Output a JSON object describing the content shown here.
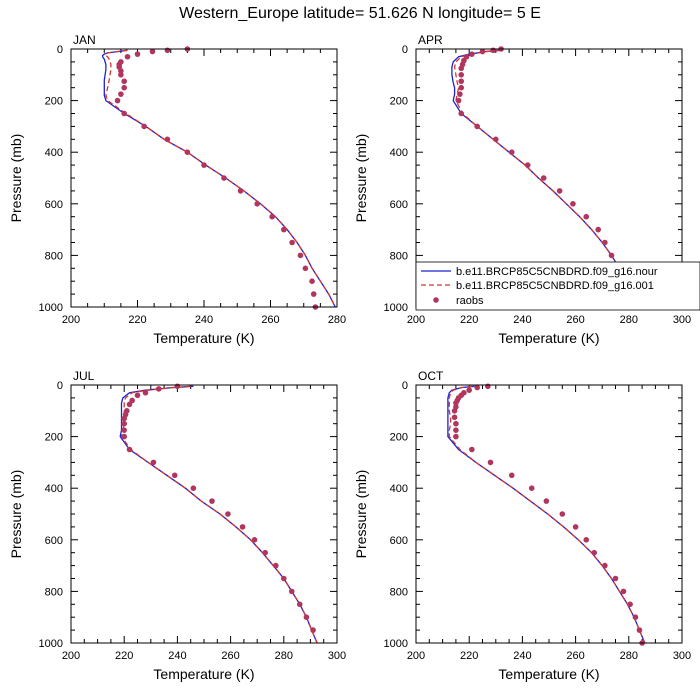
{
  "figure": {
    "title": "Western_Europe  latitude= 51.626 N longitude= 5 E"
  },
  "legend": {
    "entries": [
      {
        "label": "b.e11.BRCP85C5CNBDRD.f09_g16.nour",
        "color": "#1e22d0",
        "style": "solid"
      },
      {
        "label": "b.e11.BRCP85C5CNBDRD.f09_g16.001",
        "color": "#d8342f",
        "style": "dashed"
      },
      {
        "label": "raobs",
        "color": "#b0365e",
        "style": "marker"
      }
    ]
  },
  "chart_data": [
    {
      "type": "line",
      "title": "JAN",
      "xlabel": "Temperature (K)",
      "ylabel": "Pressure (mb)",
      "xlim": [
        200,
        280
      ],
      "ylim": [
        1000,
        0
      ],
      "xticks": [
        200,
        220,
        240,
        260,
        280
      ],
      "yticks": [
        0,
        200,
        400,
        600,
        800,
        1000
      ],
      "series": [
        {
          "key": "nour",
          "y": [
            5,
            10,
            15,
            20,
            25,
            30,
            40,
            60,
            80,
            120,
            150,
            180,
            200,
            250,
            300,
            350,
            400,
            450,
            500,
            550,
            600,
            650,
            700,
            750,
            800,
            850,
            900,
            950,
            1000
          ],
          "x": [
            217,
            214,
            211,
            210,
            209.5,
            209.5,
            210,
            210.5,
            210.5,
            210,
            210,
            210,
            210.5,
            216,
            222.5,
            228,
            235,
            240.5,
            246.5,
            252,
            257,
            261.5,
            265,
            268,
            270.5,
            272.5,
            275,
            277.5,
            279.5
          ]
        },
        {
          "key": "001",
          "y": [
            5,
            10,
            15,
            20,
            25,
            30,
            40,
            60,
            80,
            120,
            150,
            180,
            200,
            250,
            300,
            350,
            400,
            450,
            500,
            550,
            600,
            650,
            700,
            750,
            800,
            850,
            900,
            950,
            1000
          ],
          "x": [
            217,
            214,
            211,
            210.5,
            210.5,
            211,
            211.5,
            212,
            212,
            211.5,
            211,
            210.5,
            211,
            216.5,
            222.5,
            228,
            235,
            240.5,
            246.5,
            252,
            257,
            261.5,
            265,
            268,
            270.5,
            272.5,
            275,
            277.5,
            279.5
          ]
        },
        {
          "key": "raobs",
          "marker": true,
          "y": [
            0,
            5,
            10,
            20,
            30,
            50,
            60,
            70,
            85,
            100,
            125,
            150,
            175,
            200,
            250,
            300,
            350,
            400,
            450,
            500,
            550,
            600,
            650,
            700,
            750,
            800,
            850,
            900,
            950,
            1000
          ],
          "x": [
            235,
            229,
            224.5,
            220,
            217,
            215,
            214.5,
            214.5,
            215,
            215,
            216,
            216,
            215,
            214,
            216,
            222,
            229,
            235,
            240,
            246,
            251,
            256,
            260.5,
            264,
            266.5,
            269,
            270.5,
            272.5,
            273,
            273.5
          ]
        }
      ]
    },
    {
      "type": "line",
      "title": "APR",
      "xlabel": "Temperature (K)",
      "ylabel": "Pressure (mb)",
      "xlim": [
        200,
        300
      ],
      "ylim": [
        1000,
        0
      ],
      "xticks": [
        200,
        220,
        240,
        260,
        280,
        300
      ],
      "yticks": [
        0,
        200,
        400,
        600,
        800,
        1000
      ],
      "series": [
        {
          "key": "nour",
          "y": [
            5,
            10,
            20,
            30,
            50,
            70,
            100,
            130,
            150,
            175,
            200,
            250,
            300,
            350,
            400,
            450,
            500,
            550,
            600,
            650,
            700,
            750,
            800,
            850,
            900,
            950,
            1000
          ],
          "x": [
            232,
            226,
            220,
            216,
            214,
            213.5,
            213.5,
            214,
            214.5,
            214.5,
            214,
            217,
            223,
            229,
            235,
            241,
            246,
            251.5,
            256.5,
            261.5,
            266,
            270,
            273.5,
            276.5,
            279.5,
            282,
            285
          ]
        },
        {
          "key": "001",
          "y": [
            5,
            10,
            20,
            30,
            50,
            70,
            100,
            130,
            150,
            175,
            200,
            250,
            300,
            350,
            400,
            450,
            500,
            550,
            600,
            650,
            700,
            750,
            800,
            850,
            900,
            950,
            1000
          ],
          "x": [
            231,
            226,
            221,
            217,
            215,
            214.5,
            215,
            215.5,
            216,
            215.5,
            215,
            217.5,
            223,
            229,
            235,
            241,
            246,
            251.5,
            256.5,
            261.5,
            266,
            270,
            273.5,
            276.5,
            279.5,
            282,
            285
          ]
        },
        {
          "key": "raobs",
          "marker": true,
          "y": [
            0,
            5,
            10,
            20,
            30,
            45,
            60,
            75,
            100,
            125,
            150,
            175,
            200,
            250,
            300,
            350,
            400,
            450,
            500,
            550,
            600,
            650,
            700,
            750,
            800,
            850,
            900,
            950
          ],
          "x": [
            232,
            229,
            225,
            221,
            219,
            218,
            217.5,
            217,
            217,
            217,
            217,
            216.5,
            216,
            217,
            223,
            230,
            236,
            242,
            248,
            254,
            259,
            264,
            268.5,
            271,
            273.5,
            276,
            279,
            280.5
          ]
        }
      ]
    },
    {
      "type": "line",
      "title": "JUL",
      "xlabel": "Temperature (K)",
      "ylabel": "Pressure (mb)",
      "xlim": [
        200,
        300
      ],
      "ylim": [
        1000,
        0
      ],
      "xticks": [
        200,
        220,
        240,
        260,
        280,
        300
      ],
      "yticks": [
        0,
        200,
        400,
        600,
        800,
        1000
      ],
      "series": [
        {
          "key": "nour",
          "y": [
            5,
            10,
            20,
            30,
            50,
            70,
            100,
            130,
            150,
            175,
            200,
            250,
            300,
            350,
            400,
            450,
            500,
            550,
            600,
            650,
            700,
            750,
            800,
            850,
            900,
            950,
            1000
          ],
          "x": [
            246,
            238,
            228,
            222,
            219.5,
            219,
            219,
            219,
            219,
            219,
            218.5,
            222,
            229,
            236,
            243,
            249,
            256,
            262,
            267.5,
            272,
            276,
            280,
            283,
            286,
            288.5,
            290.5,
            292.5
          ]
        },
        {
          "key": "001",
          "y": [
            5,
            10,
            20,
            30,
            50,
            70,
            100,
            130,
            150,
            175,
            200,
            250,
            300,
            350,
            400,
            450,
            500,
            550,
            600,
            650,
            700,
            750,
            800,
            850,
            900,
            950,
            1000
          ],
          "x": [
            245,
            238,
            229,
            223,
            220.5,
            220,
            220,
            220,
            220,
            219.5,
            219,
            222.5,
            229,
            236,
            243,
            249,
            256,
            262,
            267.5,
            272,
            276,
            280,
            283,
            286,
            288.5,
            290.5,
            292.5
          ]
        },
        {
          "key": "raobs",
          "marker": true,
          "y": [
            5,
            15,
            30,
            40,
            60,
            75,
            100,
            115,
            130,
            150,
            175,
            200,
            250,
            300,
            350,
            400,
            450,
            500,
            550,
            600,
            650,
            700,
            750,
            800,
            850,
            900,
            950
          ],
          "x": [
            240,
            233,
            228,
            225,
            223,
            222,
            221,
            220.5,
            220,
            220,
            220,
            220,
            222,
            231,
            239,
            246,
            253,
            259,
            264.5,
            269,
            273,
            277,
            280,
            283,
            286,
            288.5,
            291
          ]
        }
      ]
    },
    {
      "type": "line",
      "title": "OCT",
      "xlabel": "Temperature (K)",
      "ylabel": "Pressure (mb)",
      "xlim": [
        200,
        300
      ],
      "ylim": [
        1000,
        0
      ],
      "xticks": [
        200,
        220,
        240,
        260,
        280,
        300
      ],
      "yticks": [
        0,
        200,
        400,
        600,
        800,
        1000
      ],
      "series": [
        {
          "key": "nour",
          "y": [
            5,
            10,
            20,
            30,
            50,
            70,
            100,
            130,
            150,
            175,
            200,
            250,
            300,
            350,
            400,
            450,
            500,
            550,
            600,
            650,
            700,
            750,
            800,
            850,
            900,
            950,
            1000
          ],
          "x": [
            222,
            217,
            213.5,
            212.5,
            212,
            212,
            212,
            212,
            212,
            212,
            212,
            216,
            222.5,
            229.5,
            236.5,
            243,
            249.5,
            255.5,
            261,
            266,
            270,
            273.5,
            276.5,
            279.5,
            282,
            284,
            286
          ]
        },
        {
          "key": "001",
          "y": [
            5,
            10,
            20,
            30,
            50,
            70,
            100,
            130,
            150,
            175,
            200,
            250,
            300,
            350,
            400,
            450,
            500,
            550,
            600,
            650,
            700,
            750,
            800,
            850,
            900,
            950,
            1000
          ],
          "x": [
            221,
            217,
            214,
            213,
            212.5,
            212.5,
            212.5,
            213,
            213,
            212.5,
            212.5,
            216.5,
            222.5,
            229.5,
            236.5,
            243,
            249.5,
            255.5,
            261,
            266,
            270,
            273.5,
            276.5,
            279.5,
            282,
            284,
            286
          ]
        },
        {
          "key": "raobs",
          "marker": true,
          "y": [
            5,
            10,
            20,
            30,
            40,
            50,
            60,
            70,
            85,
            100,
            125,
            150,
            175,
            200,
            250,
            300,
            350,
            400,
            450,
            500,
            550,
            600,
            650,
            700,
            750,
            800,
            850,
            900,
            950,
            1000
          ],
          "x": [
            227,
            223,
            220,
            218,
            217,
            216,
            215.5,
            215,
            215,
            214.5,
            214.5,
            215,
            215,
            215,
            221,
            228,
            236,
            243.5,
            249,
            255,
            260,
            264,
            267,
            271,
            275,
            278,
            280.5,
            282.5,
            284,
            285
          ]
        }
      ]
    }
  ]
}
